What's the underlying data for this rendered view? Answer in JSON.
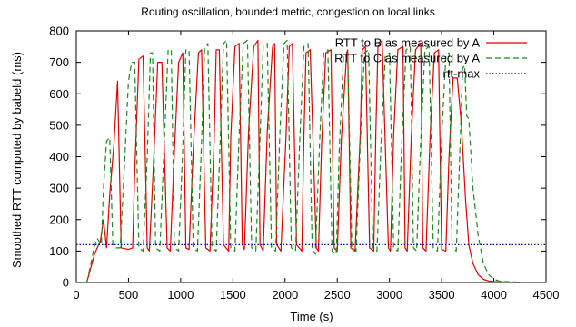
{
  "chart_data": {
    "type": "line",
    "title": "Routing oscillation, bounded metric, congestion on local links",
    "xlabel": "Time (s)",
    "ylabel": "Smoothed RTT computed by babeld (ms)",
    "xlim": [
      0,
      4500
    ],
    "ylim": [
      0,
      800
    ],
    "x_ticks": [
      0,
      500,
      1000,
      1500,
      2000,
      2500,
      3000,
      3500,
      4000,
      4500
    ],
    "y_ticks": [
      0,
      100,
      200,
      300,
      400,
      500,
      600,
      700,
      800
    ],
    "grid": false,
    "legend_position": "top-right",
    "series": [
      {
        "name": "RTT to B as measured by A",
        "color": "#e00000",
        "style": "solid",
        "x": [
          100,
          150,
          175,
          200,
          230,
          260,
          290,
          320,
          360,
          395,
          430,
          500,
          540,
          560,
          600,
          640,
          680,
          700,
          740,
          780,
          820,
          870,
          900,
          940,
          980,
          1020,
          1050,
          1080,
          1120,
          1170,
          1200,
          1240,
          1280,
          1320,
          1340,
          1370,
          1410,
          1460,
          1480,
          1520,
          1560,
          1590,
          1610,
          1650,
          1700,
          1740,
          1760,
          1790,
          1830,
          1880,
          1900,
          1920,
          1960,
          2010,
          2040,
          2070,
          2110,
          2160,
          2180,
          2200,
          2240,
          2300,
          2320,
          2350,
          2390,
          2440,
          2470,
          2500,
          2540,
          2590,
          2600,
          2630,
          2670,
          2720,
          2740,
          2770,
          2810,
          2850,
          2870,
          2890,
          2930,
          2990,
          3010,
          3040,
          3080,
          3130,
          3150,
          3170,
          3210,
          3250,
          3300,
          3320,
          3350,
          3390,
          3430,
          3470,
          3500,
          3540,
          3570,
          3610,
          3650,
          3690,
          3730,
          3760,
          3800,
          3850,
          3900,
          3950,
          4000,
          4050,
          4100,
          4200,
          4250
        ],
        "y": [
          0,
          60,
          90,
          110,
          130,
          200,
          110,
          280,
          440,
          640,
          110,
          105,
          110,
          350,
          710,
          720,
          110,
          100,
          380,
          700,
          700,
          110,
          100,
          420,
          700,
          730,
          110,
          105,
          420,
          730,
          740,
          110,
          100,
          450,
          740,
          740,
          120,
          100,
          460,
          750,
          760,
          120,
          105,
          480,
          750,
          770,
          120,
          100,
          480,
          750,
          760,
          120,
          100,
          470,
          750,
          760,
          120,
          100,
          460,
          730,
          740,
          110,
          100,
          440,
          730,
          740,
          110,
          100,
          460,
          730,
          740,
          110,
          100,
          470,
          740,
          750,
          110,
          100,
          480,
          750,
          770,
          110,
          100,
          470,
          740,
          750,
          110,
          100,
          470,
          740,
          760,
          110,
          100,
          470,
          730,
          740,
          105,
          100,
          400,
          650,
          650,
          500,
          260,
          120,
          60,
          25,
          10,
          5,
          3,
          2,
          2,
          0,
          0
        ]
      },
      {
        "name": "RTT to C as measured by A",
        "color": "#1a8a1a",
        "style": "dashed",
        "x": [
          100,
          140,
          170,
          200,
          240,
          260,
          290,
          320,
          350,
          380,
          420,
          460,
          500,
          530,
          560,
          600,
          640,
          680,
          710,
          730,
          760,
          800,
          840,
          880,
          910,
          940,
          980,
          1020,
          1050,
          1080,
          1120,
          1160,
          1200,
          1230,
          1260,
          1300,
          1340,
          1380,
          1410,
          1440,
          1480,
          1520,
          1560,
          1600,
          1640,
          1680,
          1720,
          1760,
          1790,
          1830,
          1870,
          1910,
          1950,
          1990,
          2020,
          2060,
          2100,
          2140,
          2180,
          2220,
          2260,
          2290,
          2330,
          2370,
          2410,
          2450,
          2490,
          2520,
          2560,
          2600,
          2640,
          2680,
          2720,
          2760,
          2800,
          2840,
          2880,
          2920,
          2960,
          3000,
          3040,
          3080,
          3120,
          3160,
          3200,
          3230,
          3260,
          3300,
          3340,
          3380,
          3420,
          3460,
          3500,
          3540,
          3570,
          3600,
          3640,
          3680,
          3700,
          3720,
          3740,
          3760,
          3800,
          3850,
          3900,
          3950,
          4000,
          4050,
          4100,
          4200,
          4250
        ],
        "y": [
          0,
          60,
          110,
          140,
          120,
          300,
          450,
          460,
          120,
          110,
          110,
          360,
          640,
          700,
          700,
          110,
          100,
          400,
          730,
          730,
          110,
          100,
          420,
          740,
          740,
          110,
          100,
          430,
          740,
          740,
          110,
          100,
          450,
          750,
          760,
          110,
          100,
          460,
          760,
          770,
          110,
          100,
          470,
          760,
          770,
          110,
          100,
          460,
          750,
          760,
          110,
          100,
          470,
          760,
          770,
          110,
          100,
          450,
          750,
          760,
          110,
          90,
          440,
          730,
          740,
          100,
          90,
          430,
          720,
          730,
          110,
          100,
          440,
          730,
          740,
          110,
          100,
          450,
          720,
          730,
          110,
          100,
          460,
          740,
          750,
          110,
          100,
          450,
          740,
          750,
          110,
          100,
          460,
          720,
          730,
          110,
          100,
          470,
          680,
          690,
          530,
          520,
          300,
          150,
          60,
          25,
          10,
          5,
          3,
          2,
          0
        ]
      },
      {
        "name": "rtt-max",
        "color": "#00008b",
        "style": "dotted",
        "x": [
          0,
          4500
        ],
        "y": [
          120,
          120
        ]
      }
    ]
  }
}
